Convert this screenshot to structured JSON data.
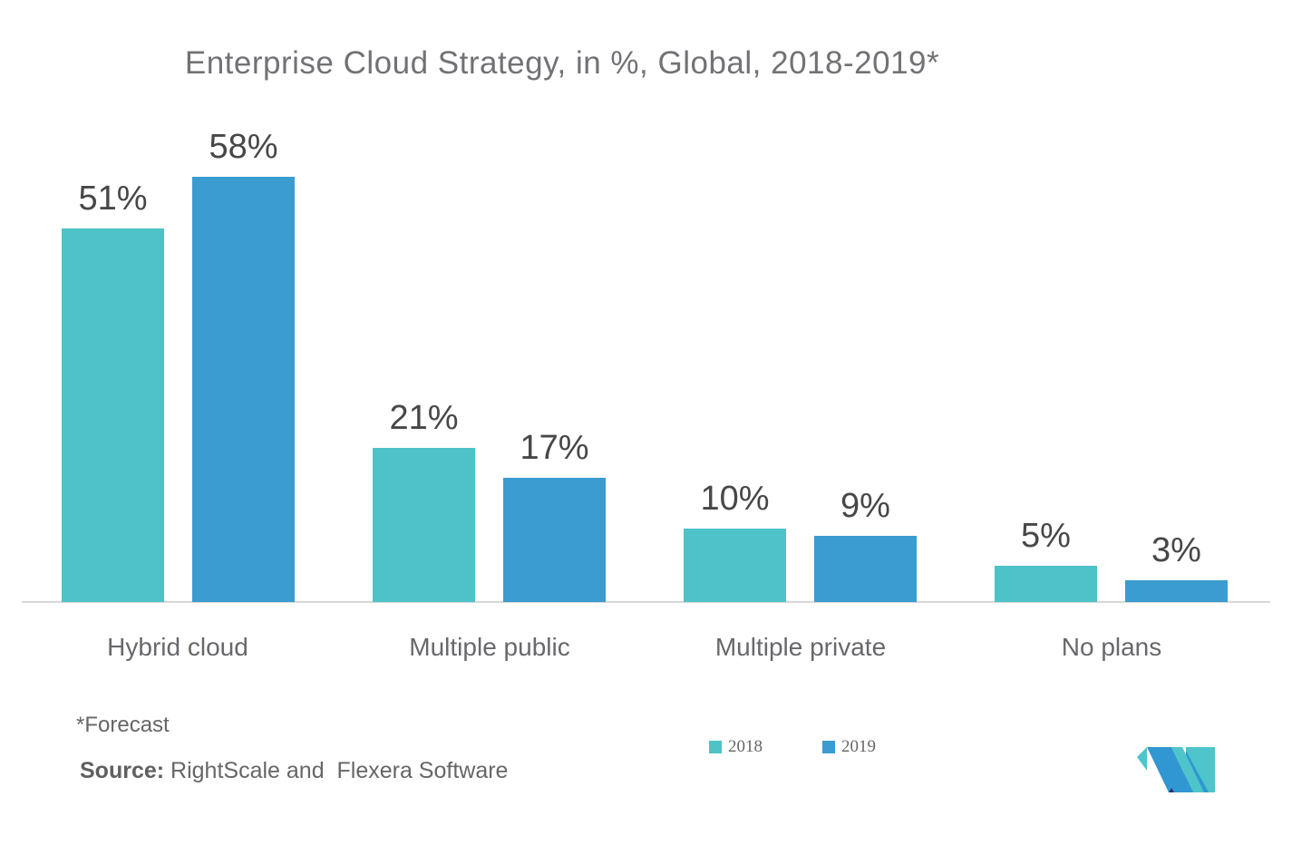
{
  "chart_data": {
    "type": "bar",
    "title": "Enterprise Cloud Strategy, in %, Global, 2018-2019*",
    "categories": [
      "Hybrid cloud",
      "Multiple public",
      "Multiple private",
      "No plans"
    ],
    "series": [
      {
        "name": "2018",
        "color": "#4dc2c7",
        "values": [
          51,
          21,
          10,
          5
        ]
      },
      {
        "name": "2019",
        "color": "#3a9cd0",
        "values": [
          58,
          17,
          9,
          3
        ]
      }
    ],
    "value_suffix": "%",
    "ylim": [
      0,
      60
    ],
    "grid": false,
    "data_labels": true,
    "legend_position": "bottom-center",
    "axis_line_color": "#d8d8d8"
  },
  "footer": {
    "forecast_note": "*Forecast",
    "source_label": "Source:",
    "source_text": "RightScale and  Flexera Software"
  },
  "logo": {
    "name": "mordor-intelligence-logo",
    "colors": {
      "teal": "#4dc5cb",
      "blue": "#3097d3",
      "navy": "#27336e"
    }
  }
}
